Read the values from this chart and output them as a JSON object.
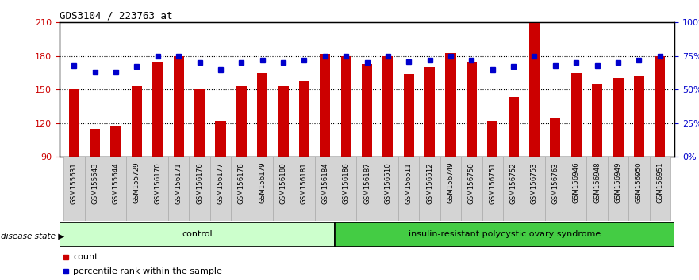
{
  "title": "GDS3104 / 223763_at",
  "categories": [
    "GSM155631",
    "GSM155643",
    "GSM155644",
    "GSM155729",
    "GSM156170",
    "GSM156171",
    "GSM156176",
    "GSM156177",
    "GSM156178",
    "GSM156179",
    "GSM156180",
    "GSM156181",
    "GSM156184",
    "GSM156186",
    "GSM156187",
    "GSM156510",
    "GSM156511",
    "GSM156512",
    "GSM156749",
    "GSM156750",
    "GSM156751",
    "GSM156752",
    "GSM156753",
    "GSM156763",
    "GSM156946",
    "GSM156948",
    "GSM156949",
    "GSM156950",
    "GSM156951"
  ],
  "bar_values": [
    150,
    115,
    118,
    153,
    175,
    180,
    150,
    122,
    153,
    165,
    153,
    157,
    182,
    180,
    173,
    180,
    164,
    170,
    183,
    175,
    122,
    143,
    210,
    125,
    165,
    155,
    160,
    162,
    180
  ],
  "percentile_values": [
    68,
    63,
    63,
    67,
    75,
    75,
    70,
    65,
    70,
    72,
    70,
    72,
    75,
    75,
    70,
    75,
    71,
    72,
    75,
    72,
    65,
    67,
    75,
    68,
    70,
    68,
    70,
    72,
    75
  ],
  "control_count": 13,
  "ylim_left": [
    90,
    210
  ],
  "ylim_right": [
    0,
    100
  ],
  "yticks_left": [
    90,
    120,
    150,
    180,
    210
  ],
  "yticks_right": [
    0,
    25,
    50,
    75,
    100
  ],
  "bar_color": "#cc0000",
  "percentile_color": "#0000cc",
  "plot_bg": "#ffffff",
  "control_bg": "#ccffcc",
  "syndrome_bg": "#44cc44",
  "tick_bg": "#d4d4d4",
  "label_control": "control",
  "label_syndrome": "insulin-resistant polycystic ovary syndrome",
  "disease_state_label": "disease state",
  "legend_count": "count",
  "legend_percentile": "percentile rank within the sample",
  "bar_width": 0.5
}
